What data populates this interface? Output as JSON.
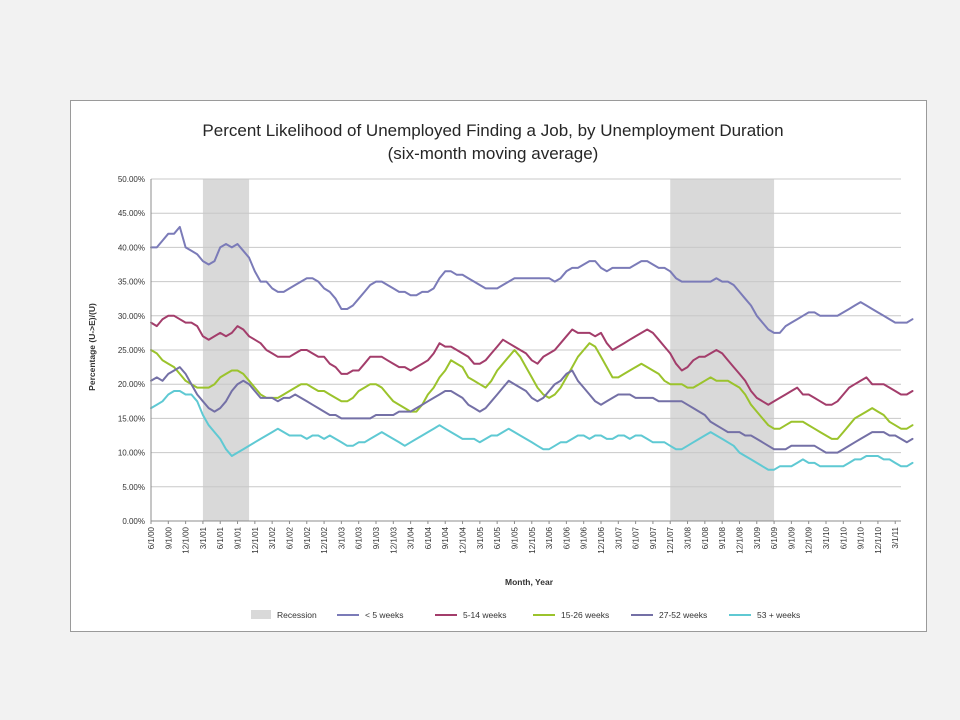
{
  "chart_data": {
    "type": "line",
    "title": "Percent Likelihood of Unemployed Finding a Job, by Unemployment Duration",
    "subtitle": "(six-month moving average)",
    "xlabel": "Month, Year",
    "ylabel": "Percentage (U->E)/(U)",
    "ylim": [
      0,
      50
    ],
    "y_ticks": [
      "0.00%",
      "5.00%",
      "10.00%",
      "15.00%",
      "20.00%",
      "25.00%",
      "30.00%",
      "35.00%",
      "40.00%",
      "45.00%",
      "50.00%"
    ],
    "grid": true,
    "legend_position": "bottom",
    "x_start": "2000-06",
    "x_end": "2011-04",
    "x_tick_labels": [
      "6/1/00",
      "9/1/00",
      "12/1/00",
      "3/1/01",
      "6/1/01",
      "9/1/01",
      "12/1/01",
      "3/1/02",
      "6/1/02",
      "9/1/02",
      "12/1/02",
      "3/1/03",
      "6/1/03",
      "9/1/03",
      "12/1/03",
      "3/1/04",
      "6/1/04",
      "9/1/04",
      "12/1/04",
      "3/1/05",
      "6/1/05",
      "9/1/05",
      "12/1/05",
      "3/1/06",
      "6/1/06",
      "9/1/06",
      "12/1/06",
      "3/1/07",
      "6/1/07",
      "9/1/07",
      "12/1/07",
      "3/1/08",
      "6/1/08",
      "9/1/08",
      "12/1/08",
      "3/1/09",
      "6/1/09",
      "9/1/09",
      "12/1/09",
      "3/1/10",
      "6/1/10",
      "9/1/10",
      "12/1/10",
      "3/1/11"
    ],
    "recessions": [
      {
        "name": "Recession",
        "start": "2001-03",
        "end": "2001-11"
      },
      {
        "name": "Recession",
        "start": "2007-12",
        "end": "2009-06"
      }
    ],
    "series": [
      {
        "name": "< 5 weeks",
        "color": "#7b7bb8",
        "values": [
          40.0,
          40.0,
          41.0,
          42.0,
          42.0,
          43.0,
          40.0,
          39.5,
          39.0,
          38.0,
          37.5,
          38.0,
          40.0,
          40.5,
          40.0,
          40.5,
          39.5,
          38.5,
          36.5,
          35.0,
          35.0,
          34.0,
          33.5,
          33.5,
          34.0,
          34.5,
          35.0,
          35.5,
          35.5,
          35.0,
          34.0,
          33.5,
          32.5,
          31.0,
          31.0,
          31.5,
          32.5,
          33.5,
          34.5,
          35.0,
          35.0,
          34.5,
          34.0,
          33.5,
          33.5,
          33.0,
          33.0,
          33.5,
          33.5,
          34.0,
          35.5,
          36.5,
          36.5,
          36.0,
          36.0,
          35.5,
          35.0,
          34.5,
          34.0,
          34.0,
          34.0,
          34.5,
          35.0,
          35.5,
          35.5,
          35.5,
          35.5,
          35.5,
          35.5,
          35.5,
          35.0,
          35.5,
          36.5,
          37.0,
          37.0,
          37.5,
          38.0,
          38.0,
          37.0,
          36.5,
          37.0,
          37.0,
          37.0,
          37.0,
          37.5,
          38.0,
          38.0,
          37.5,
          37.0,
          37.0,
          36.5,
          35.5,
          35.0,
          35.0,
          35.0,
          35.0,
          35.0,
          35.0,
          35.5,
          35.0,
          35.0,
          34.5,
          33.5,
          32.5,
          31.5,
          30.0,
          29.0,
          28.0,
          27.5,
          27.5,
          28.5,
          29.0,
          29.5,
          30.0,
          30.5,
          30.5,
          30.0,
          30.0,
          30.0,
          30.0,
          30.5,
          31.0,
          31.5,
          32.0,
          31.5,
          31.0,
          30.5,
          30.0,
          29.5,
          29.0,
          29.0,
          29.0,
          29.5
        ]
      },
      {
        "name": "5-14 weeks",
        "color": "#a33d6b",
        "values": [
          29.0,
          28.5,
          29.5,
          30.0,
          30.0,
          29.5,
          29.0,
          29.0,
          28.5,
          27.0,
          26.5,
          27.0,
          27.5,
          27.0,
          27.5,
          28.5,
          28.0,
          27.0,
          26.5,
          26.0,
          25.0,
          24.5,
          24.0,
          24.0,
          24.0,
          24.5,
          25.0,
          25.0,
          24.5,
          24.0,
          24.0,
          23.0,
          22.5,
          21.5,
          21.5,
          22.0,
          22.0,
          23.0,
          24.0,
          24.0,
          24.0,
          23.5,
          23.0,
          22.5,
          22.5,
          22.0,
          22.5,
          23.0,
          23.5,
          24.5,
          26.0,
          25.5,
          25.5,
          25.0,
          24.5,
          24.0,
          23.0,
          23.0,
          23.5,
          24.5,
          25.5,
          26.5,
          26.0,
          25.5,
          25.0,
          24.5,
          23.5,
          23.0,
          24.0,
          24.5,
          25.0,
          26.0,
          27.0,
          28.0,
          27.5,
          27.5,
          27.5,
          27.0,
          27.5,
          26.0,
          25.0,
          25.5,
          26.0,
          26.5,
          27.0,
          27.5,
          28.0,
          27.5,
          26.5,
          25.5,
          24.5,
          23.0,
          22.0,
          22.5,
          23.5,
          24.0,
          24.0,
          24.5,
          25.0,
          24.5,
          23.5,
          22.5,
          21.5,
          20.5,
          19.0,
          18.0,
          17.5,
          17.0,
          17.5,
          18.0,
          18.5,
          19.0,
          19.5,
          18.5,
          18.5,
          18.0,
          17.5,
          17.0,
          17.0,
          17.5,
          18.5,
          19.5,
          20.0,
          20.5,
          21.0,
          20.0,
          20.0,
          20.0,
          19.5,
          19.0,
          18.5,
          18.5,
          19.0
        ]
      },
      {
        "name": "15-26 weeks",
        "color": "#9bc32c",
        "values": [
          25.0,
          24.5,
          23.5,
          23.0,
          22.5,
          21.5,
          20.5,
          20.0,
          19.5,
          19.5,
          19.5,
          20.0,
          21.0,
          21.5,
          22.0,
          22.0,
          21.5,
          20.5,
          19.5,
          18.5,
          18.0,
          18.0,
          18.0,
          18.5,
          19.0,
          19.5,
          20.0,
          20.0,
          19.5,
          19.0,
          19.0,
          18.5,
          18.0,
          17.5,
          17.5,
          18.0,
          19.0,
          19.5,
          20.0,
          20.0,
          19.5,
          18.5,
          17.5,
          17.0,
          16.5,
          16.0,
          16.0,
          17.0,
          18.5,
          19.5,
          21.0,
          22.0,
          23.5,
          23.0,
          22.5,
          21.0,
          20.5,
          20.0,
          19.5,
          20.5,
          22.0,
          23.0,
          24.0,
          25.0,
          24.0,
          22.5,
          21.0,
          19.5,
          18.5,
          18.0,
          18.5,
          19.5,
          21.0,
          22.5,
          24.0,
          25.0,
          26.0,
          25.5,
          24.0,
          22.5,
          21.0,
          21.0,
          21.5,
          22.0,
          22.5,
          23.0,
          22.5,
          22.0,
          21.5,
          20.5,
          20.0,
          20.0,
          20.0,
          19.5,
          19.5,
          20.0,
          20.5,
          21.0,
          20.5,
          20.5,
          20.5,
          20.0,
          19.5,
          18.5,
          17.0,
          16.0,
          15.0,
          14.0,
          13.5,
          13.5,
          14.0,
          14.5,
          14.5,
          14.5,
          14.0,
          13.5,
          13.0,
          12.5,
          12.0,
          12.0,
          13.0,
          14.0,
          15.0,
          15.5,
          16.0,
          16.5,
          16.0,
          15.5,
          14.5,
          14.0,
          13.5,
          13.5,
          14.0
        ]
      },
      {
        "name": "27-52 weeks",
        "color": "#7470a6",
        "values": [
          20.5,
          21.0,
          20.5,
          21.5,
          22.0,
          22.5,
          21.5,
          20.0,
          18.5,
          17.5,
          16.5,
          16.0,
          16.5,
          17.5,
          19.0,
          20.0,
          20.5,
          20.0,
          19.0,
          18.0,
          18.0,
          18.0,
          17.5,
          18.0,
          18.0,
          18.5,
          18.0,
          17.5,
          17.0,
          16.5,
          16.0,
          15.5,
          15.5,
          15.0,
          15.0,
          15.0,
          15.0,
          15.0,
          15.0,
          15.5,
          15.5,
          15.5,
          15.5,
          16.0,
          16.0,
          16.0,
          16.5,
          17.0,
          17.5,
          18.0,
          18.5,
          19.0,
          19.0,
          18.5,
          18.0,
          17.0,
          16.5,
          16.0,
          16.5,
          17.5,
          18.5,
          19.5,
          20.5,
          20.0,
          19.5,
          19.0,
          18.0,
          17.5,
          18.0,
          19.0,
          20.0,
          20.5,
          21.5,
          22.0,
          20.5,
          19.5,
          18.5,
          17.5,
          17.0,
          17.5,
          18.0,
          18.5,
          18.5,
          18.5,
          18.0,
          18.0,
          18.0,
          18.0,
          17.5,
          17.5,
          17.5,
          17.5,
          17.5,
          17.0,
          16.5,
          16.0,
          15.5,
          14.5,
          14.0,
          13.5,
          13.0,
          13.0,
          13.0,
          12.5,
          12.5,
          12.0,
          11.5,
          11.0,
          10.5,
          10.5,
          10.5,
          11.0,
          11.0,
          11.0,
          11.0,
          11.0,
          10.5,
          10.0,
          10.0,
          10.0,
          10.5,
          11.0,
          11.5,
          12.0,
          12.5,
          13.0,
          13.0,
          13.0,
          12.5,
          12.5,
          12.0,
          11.5,
          12.0
        ]
      },
      {
        "name": "53 + weeks",
        "color": "#5fc9d3",
        "values": [
          16.5,
          17.0,
          17.5,
          18.5,
          19.0,
          19.0,
          18.5,
          18.5,
          17.5,
          15.5,
          14.0,
          13.0,
          12.0,
          10.5,
          9.5,
          10.0,
          10.5,
          11.0,
          11.5,
          12.0,
          12.5,
          13.0,
          13.5,
          13.0,
          12.5,
          12.5,
          12.5,
          12.0,
          12.5,
          12.5,
          12.0,
          12.5,
          12.0,
          11.5,
          11.0,
          11.0,
          11.5,
          11.5,
          12.0,
          12.5,
          13.0,
          12.5,
          12.0,
          11.5,
          11.0,
          11.5,
          12.0,
          12.5,
          13.0,
          13.5,
          14.0,
          13.5,
          13.0,
          12.5,
          12.0,
          12.0,
          12.0,
          11.5,
          12.0,
          12.5,
          12.5,
          13.0,
          13.5,
          13.0,
          12.5,
          12.0,
          11.5,
          11.0,
          10.5,
          10.5,
          11.0,
          11.5,
          11.5,
          12.0,
          12.5,
          12.5,
          12.0,
          12.5,
          12.5,
          12.0,
          12.0,
          12.5,
          12.5,
          12.0,
          12.5,
          12.5,
          12.0,
          11.5,
          11.5,
          11.5,
          11.0,
          10.5,
          10.5,
          11.0,
          11.5,
          12.0,
          12.5,
          13.0,
          12.5,
          12.0,
          11.5,
          11.0,
          10.0,
          9.5,
          9.0,
          8.5,
          8.0,
          7.5,
          7.5,
          8.0,
          8.0,
          8.0,
          8.5,
          9.0,
          8.5,
          8.5,
          8.0,
          8.0,
          8.0,
          8.0,
          8.0,
          8.5,
          9.0,
          9.0,
          9.5,
          9.5,
          9.5,
          9.0,
          9.0,
          8.5,
          8.0,
          8.0,
          8.5
        ]
      }
    ]
  }
}
